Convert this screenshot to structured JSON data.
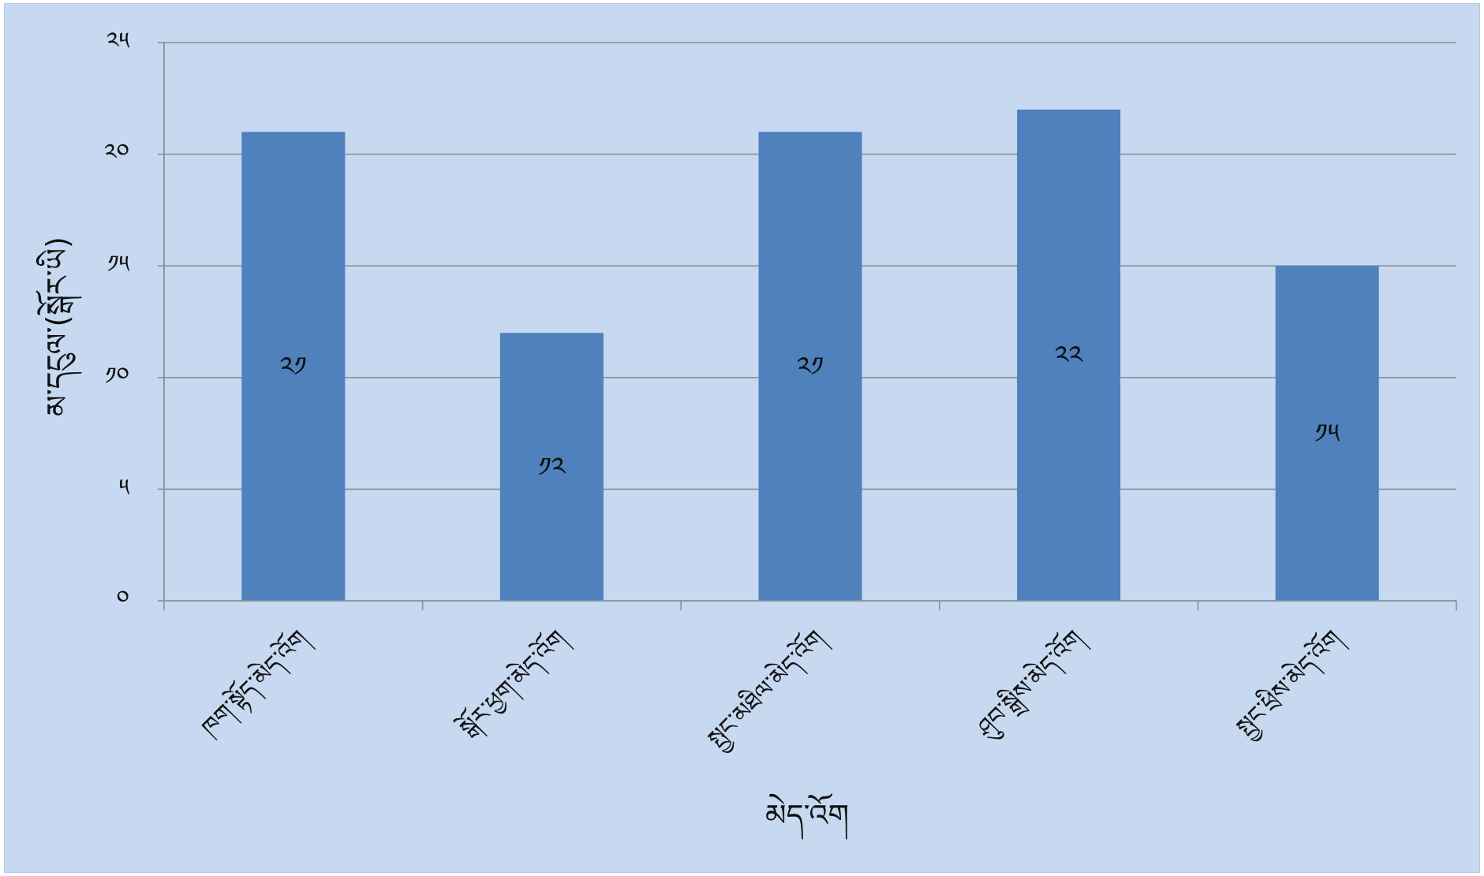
{
  "chart_data": {
    "type": "bar",
    "categories": [
      "ཁག་སྟོད་མེད་འོག",
      "སྒོར་ཕྱག་མེད་འོག",
      "སྤྱང་མཐིལ་མེད་འོག",
      "ཤུབ་སྒྲིས་མེད་འོག",
      "སྤྱང་ཕྲིས་མེད་འོག"
    ],
    "values": [
      21,
      12,
      21,
      22,
      15
    ],
    "data_labels": [
      "༢༡",
      "༡༢",
      "༢༡",
      "༢༢",
      "༡༥"
    ],
    "y_ticks": [
      0,
      5,
      10,
      15,
      20,
      25
    ],
    "y_tick_labels": [
      "༠",
      "༥",
      "༡༠",
      "༡༥",
      "༢༠",
      "༢༥"
    ],
    "ylim": [
      0,
      25
    ],
    "xlabel": "མེད་འོག",
    "ylabel": "མ་དངུལ་(སྒོར་ཡི)",
    "grid": true,
    "legend": "none",
    "colors": {
      "bar": "#4f81bd",
      "background": "#c6d9f1",
      "grid": "#8a8f96"
    }
  }
}
